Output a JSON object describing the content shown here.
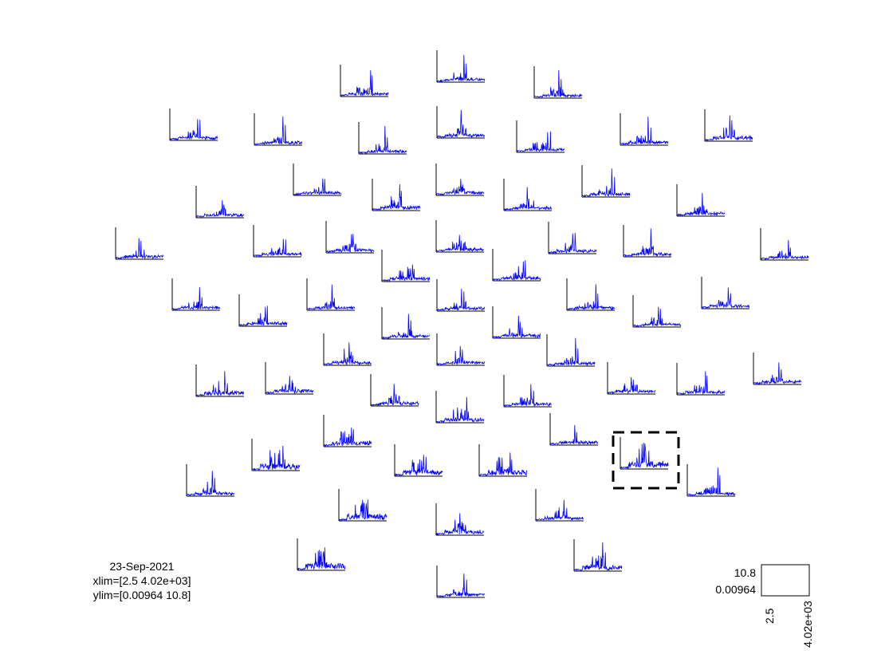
{
  "figure": {
    "date": "23-Sep-2021",
    "xlim_text": "xlim=[2.5 4.02e+03]",
    "ylim_text": "ylim=[0.00964 10.8]"
  },
  "scale": {
    "y_max_label": "10.8",
    "y_min_label": "0.00964",
    "x_min_label": "2.5",
    "x_max_label": "4.02e+03"
  },
  "chart_data": {
    "type": "line",
    "layout": "topographic multiplot of power spectra, one small axes per channel",
    "xlim": [
      2.5,
      4020
    ],
    "ylim": [
      0.00964,
      10.8
    ],
    "series_color": "#0000ff",
    "axis_color": "#000000",
    "channel_count": 69,
    "highlighted_channel": "dashed black box around one channel at right, lower-middle of the layout",
    "grid": false,
    "legend": "none"
  }
}
